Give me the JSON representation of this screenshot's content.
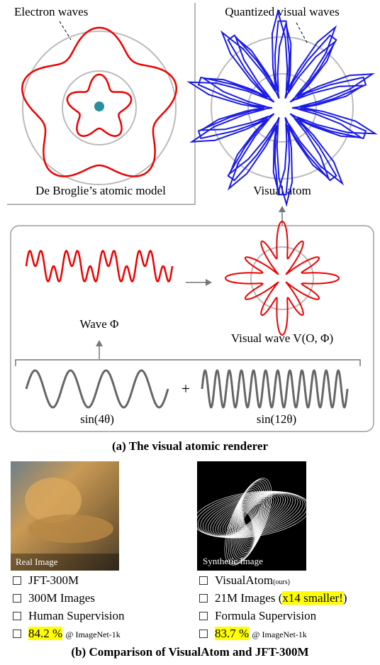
{
  "panel_a": {
    "atom_model": {
      "label": "Electron waves",
      "caption": "De Broglie’s atomic model"
    },
    "visual_atom": {
      "label": "Quantized visual waves",
      "caption": "Visual atom"
    },
    "wave": {
      "caption": "Wave Φ"
    },
    "visual_wave": {
      "caption": "Visual wave V(O, Φ)"
    },
    "sine_a": {
      "caption": "sin(4θ)"
    },
    "plus": "+",
    "sine_b": {
      "caption": "sin(12θ)"
    },
    "caption": "(a) The visual atomic renderer"
  },
  "panel_b": {
    "real": {
      "image_label": "Real Image",
      "items": [
        "JFT-300M",
        "300M Images",
        "Human Supervision"
      ],
      "score": "84.2 %",
      "benchmark": "@ ImageNet-1k"
    },
    "synthetic": {
      "image_label": "Synthetic Image",
      "name": "VisualAtom",
      "name_note": "(ours)",
      "images": {
        "before": "21M Images (",
        "highlight": "x14 smaller!",
        "after": ")"
      },
      "supervision": "Formula Supervision",
      "score": "83.7 %",
      "benchmark": "@ ImageNet-1k"
    },
    "caption": "(b) Comparison of VisualAtom and JFT-300M"
  }
}
